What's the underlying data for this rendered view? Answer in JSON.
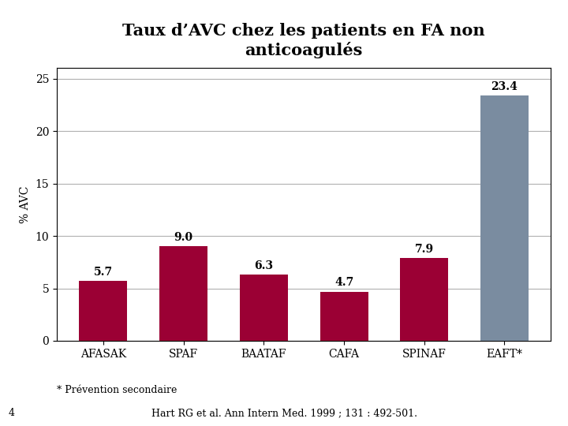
{
  "chart_data": {
    "type": "bar",
    "title": "Taux d’AVC chez les patients en FA non\nanticoagulés",
    "ylabel": "% AVC",
    "categories": [
      "AFASAK",
      "SPAF",
      "BAATAF",
      "CAFA",
      "SPINAF",
      "EAFT*"
    ],
    "values": [
      5.7,
      9.0,
      6.3,
      4.7,
      7.9,
      23.4
    ],
    "colors": [
      "#9B0034",
      "#9B0034",
      "#9B0034",
      "#9B0034",
      "#9B0034",
      "#7A8CA0"
    ],
    "ylim": [
      0,
      26
    ],
    "yticks": [
      0,
      5,
      10,
      15,
      20,
      25
    ],
    "grid": true,
    "data_labels": true,
    "annotations": [
      "* Prévention secondaire",
      "Hart RG et al. Ann Intern Med. 1999 ; 131 : 492-501.",
      "4"
    ]
  }
}
